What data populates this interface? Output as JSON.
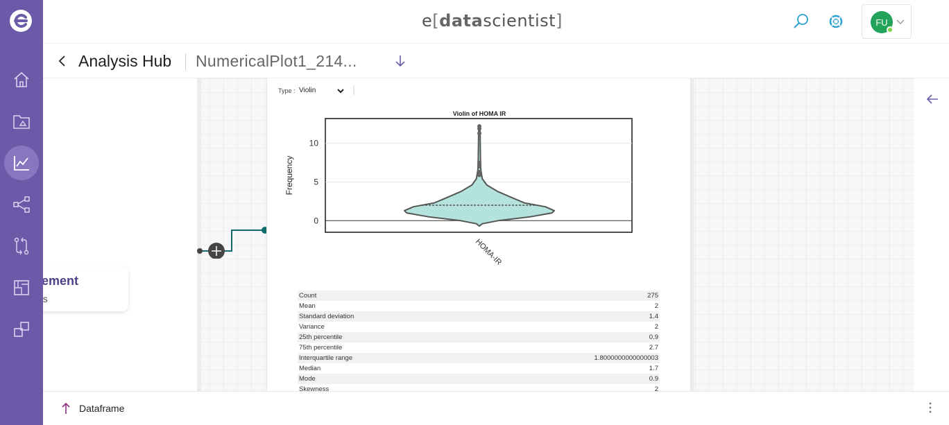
{
  "brand": {
    "e": "e",
    "open": "[",
    "data": "data",
    "scientist": "scientist",
    "close": "]"
  },
  "user": {
    "initials": "FU"
  },
  "header": {
    "title": "Analysis Hub",
    "file_name": "NumericalPlot1_214..."
  },
  "node": {
    "title": "asurement",
    "subtitle": "eatures"
  },
  "plot_panel": {
    "type_label": "Type :",
    "type_value": "Violin"
  },
  "chart_data": {
    "type": "violin",
    "title": "Violin of HOMA IR",
    "ylabel": "Frequency",
    "categories": [
      "HOMA-IR"
    ],
    "yticks": [
      0,
      5,
      10
    ],
    "ylim": [
      -1.5,
      13.2
    ],
    "violin_profile": [
      {
        "y": -0.7,
        "w": 0.0
      },
      {
        "y": -0.4,
        "w": 0.04
      },
      {
        "y": 0.0,
        "w": 0.25
      },
      {
        "y": 0.5,
        "w": 0.68
      },
      {
        "y": 1.0,
        "w": 0.97
      },
      {
        "y": 1.3,
        "w": 1.0
      },
      {
        "y": 1.8,
        "w": 0.88
      },
      {
        "y": 2.3,
        "w": 0.6
      },
      {
        "y": 3.0,
        "w": 0.43
      },
      {
        "y": 3.8,
        "w": 0.24
      },
      {
        "y": 4.6,
        "w": 0.1
      },
      {
        "y": 5.4,
        "w": 0.04
      },
      {
        "y": 6.5,
        "w": 0.02
      },
      {
        "y": 8.0,
        "w": 0.015
      },
      {
        "y": 10.0,
        "w": 0.012
      },
      {
        "y": 11.5,
        "w": 0.01
      },
      {
        "y": 12.3,
        "w": 0.0
      }
    ],
    "mean_line": 2.0,
    "outliers": [
      5.9,
      6.3,
      7.0,
      7.5,
      11.3,
      11.9,
      12.2
    ],
    "colors": {
      "fill": "#b3e3dc",
      "stroke": "#555555"
    }
  },
  "stats": [
    {
      "label": "Count",
      "value": "275"
    },
    {
      "label": "Mean",
      "value": "2"
    },
    {
      "label": "Standard deviation",
      "value": "1.4"
    },
    {
      "label": "Variance",
      "value": "2"
    },
    {
      "label": "25th percentile",
      "value": "0.9"
    },
    {
      "label": "75th percentile",
      "value": "2.7"
    },
    {
      "label": "Interquartile range",
      "value": "1.8000000000000003"
    },
    {
      "label": "Median",
      "value": "1.7"
    },
    {
      "label": "Mode",
      "value": "0.9"
    },
    {
      "label": "Skewness",
      "value": "2"
    }
  ],
  "bottom": {
    "label": "Dataframe"
  },
  "colors": {
    "rail": "#6a5aa8",
    "accent": "#2d9fd0",
    "connector": "#0d6b6e",
    "title": "#4b3f8a"
  },
  "icons": {
    "rail": [
      "home-icon",
      "project-folder-icon",
      "analysis-chart-icon",
      "workflow-share-icon",
      "compare-icon",
      "library-icon",
      "stack-icon"
    ],
    "top": [
      "search-icon",
      "help-lifebuoy-icon"
    ]
  }
}
